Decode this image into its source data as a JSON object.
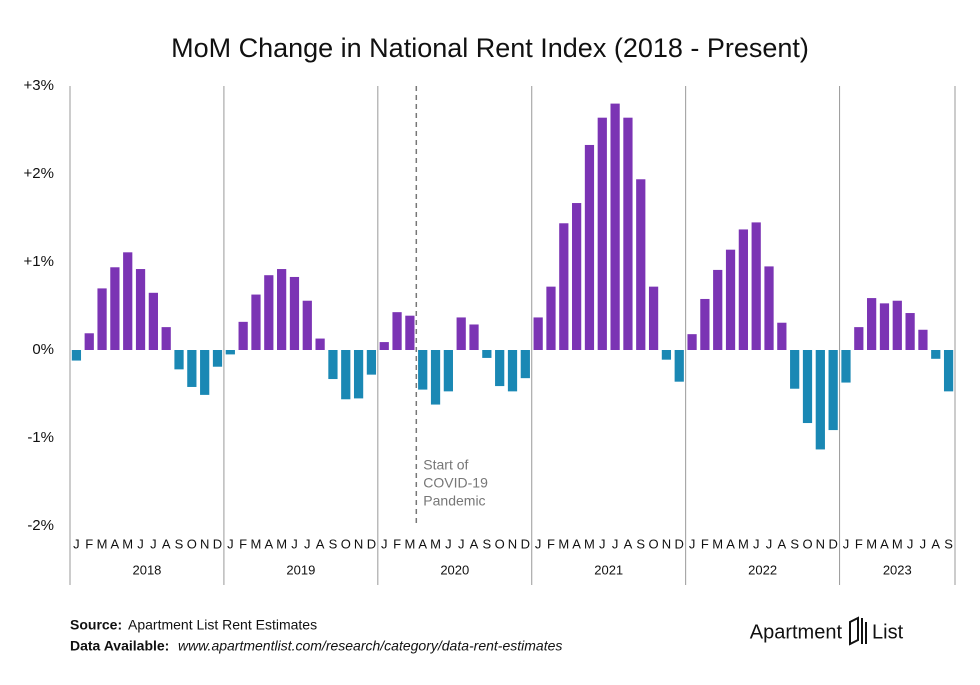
{
  "chart_data": {
    "type": "bar",
    "title": "MoM Change in National Rent Index (2018 - Present)",
    "categories": [
      "J",
      "F",
      "M",
      "A",
      "M",
      "J",
      "J",
      "A",
      "S",
      "O",
      "N",
      "D",
      "J",
      "F",
      "M",
      "A",
      "M",
      "J",
      "J",
      "A",
      "S",
      "O",
      "N",
      "D",
      "J",
      "F",
      "M",
      "A",
      "M",
      "J",
      "J",
      "A",
      "S",
      "O",
      "N",
      "D",
      "J",
      "F",
      "M",
      "A",
      "M",
      "J",
      "J",
      "A",
      "S",
      "O",
      "N",
      "D",
      "J",
      "F",
      "M",
      "A",
      "M",
      "J",
      "J",
      "A",
      "S",
      "O",
      "N",
      "D",
      "J",
      "F",
      "M",
      "A",
      "M",
      "J",
      "J",
      "A",
      "S"
    ],
    "years": [
      "2018",
      "2019",
      "2020",
      "2021",
      "2022",
      "2023"
    ],
    "values": [
      -0.12,
      0.19,
      0.7,
      0.94,
      1.11,
      0.92,
      0.65,
      0.26,
      -0.22,
      -0.42,
      -0.51,
      -0.19,
      -0.05,
      0.32,
      0.63,
      0.85,
      0.92,
      0.83,
      0.56,
      0.13,
      -0.33,
      -0.56,
      -0.55,
      -0.28,
      0.09,
      0.43,
      0.39,
      -0.45,
      -0.62,
      -0.47,
      0.37,
      0.29,
      -0.09,
      -0.41,
      -0.47,
      -0.32,
      0.37,
      0.72,
      1.44,
      1.67,
      2.33,
      2.64,
      2.8,
      2.64,
      1.94,
      0.72,
      -0.11,
      -0.36,
      0.18,
      0.58,
      0.91,
      1.14,
      1.37,
      1.45,
      0.95,
      0.31,
      -0.44,
      -0.83,
      -1.13,
      -0.91,
      -0.37,
      0.26,
      0.59,
      0.53,
      0.56,
      0.42,
      0.23,
      -0.1,
      -0.47
    ],
    "colors": {
      "positive": "#7b34b4",
      "negative": "#1a88b4"
    },
    "ylim": [
      -2,
      3
    ],
    "yticks": [
      {
        "value": -2,
        "label": "-2%"
      },
      {
        "value": -1,
        "label": "-1%"
      },
      {
        "value": 0,
        "label": "0%"
      },
      {
        "value": 1,
        "label": "+1%"
      },
      {
        "value": 2,
        "label": "+2%"
      },
      {
        "value": 3,
        "label": "+3%"
      }
    ],
    "annotation": [
      "Start of",
      "COVID-19",
      "Pandemic"
    ]
  },
  "footer": {
    "source_label": "Source:",
    "source": "Apartment List Rent Estimates",
    "data_label": "Data Available:",
    "data_url": "www.apartmentlist.com/research/category/data-rent-estimates",
    "brand": [
      "Apartment",
      "List"
    ]
  }
}
